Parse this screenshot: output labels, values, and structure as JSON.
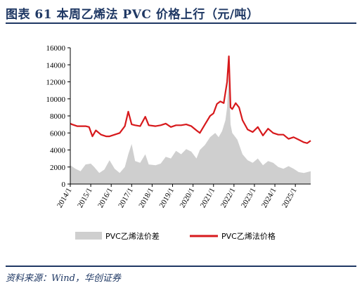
{
  "title": "图表 61    本周乙烯法 PVC 价格上行（元/吨）",
  "source": "资料来源：Wind，华创证券",
  "colors": {
    "price": "#d7191c",
    "spread": "#cfcfcf",
    "accent": "#1f3864"
  },
  "chart_data": {
    "type": "line",
    "ylim": [
      0,
      16000
    ],
    "yticks": [
      "0",
      "2000",
      "4000",
      "6000",
      "8000",
      "10000",
      "12000",
      "14000",
      "16000"
    ],
    "xlim": [
      "2014/1",
      "2025/10"
    ],
    "xticks": [
      "2014/1",
      "2015/1",
      "2016/1",
      "2017/1",
      "2018/1",
      "2019/1",
      "2020/1",
      "2021/1",
      "2022/1",
      "2023/1",
      "2024/1",
      "2025/1"
    ],
    "legend_position": "bottom",
    "series": [
      {
        "name": "PVC乙烯法价差",
        "style": "area",
        "color": "#cfcfcf",
        "points": [
          [
            "2014/1",
            2200
          ],
          [
            "2014/4",
            1800
          ],
          [
            "2014/7",
            1500
          ],
          [
            "2014/10",
            2300
          ],
          [
            "2015/1",
            2400
          ],
          [
            "2015/3",
            2000
          ],
          [
            "2015/6",
            1300
          ],
          [
            "2015/9",
            1700
          ],
          [
            "2015/12",
            2800
          ],
          [
            "2016/3",
            1800
          ],
          [
            "2016/6",
            1300
          ],
          [
            "2016/9",
            2000
          ],
          [
            "2016/11",
            3500
          ],
          [
            "2017/1",
            4700
          ],
          [
            "2017/3",
            2700
          ],
          [
            "2017/6",
            2500
          ],
          [
            "2017/9",
            3500
          ],
          [
            "2017/11",
            2300
          ],
          [
            "2018/3",
            2200
          ],
          [
            "2018/6",
            2400
          ],
          [
            "2018/9",
            3200
          ],
          [
            "2018/12",
            3000
          ],
          [
            "2019/3",
            3900
          ],
          [
            "2019/6",
            3500
          ],
          [
            "2019/9",
            4100
          ],
          [
            "2019/12",
            3800
          ],
          [
            "2020/3",
            3000
          ],
          [
            "2020/5",
            4000
          ],
          [
            "2020/8",
            4600
          ],
          [
            "2020/11",
            5500
          ],
          [
            "2021/2",
            6000
          ],
          [
            "2021/4",
            5500
          ],
          [
            "2021/6",
            6200
          ],
          [
            "2021/8",
            7500
          ],
          [
            "2021/9",
            9000
          ],
          [
            "2021/10",
            13000
          ],
          [
            "2021/11",
            7000
          ],
          [
            "2021/12",
            6000
          ],
          [
            "2022/3",
            5200
          ],
          [
            "2022/6",
            3500
          ],
          [
            "2022/9",
            2800
          ],
          [
            "2022/12",
            2500
          ],
          [
            "2023/3",
            3000
          ],
          [
            "2023/6",
            2200
          ],
          [
            "2023/9",
            2700
          ],
          [
            "2023/12",
            2500
          ],
          [
            "2024/3",
            2000
          ],
          [
            "2024/6",
            1800
          ],
          [
            "2024/9",
            2100
          ],
          [
            "2024/12",
            1800
          ],
          [
            "2025/3",
            1400
          ],
          [
            "2025/6",
            1300
          ],
          [
            "2025/10",
            1500
          ]
        ]
      },
      {
        "name": "PVC乙烯法价格",
        "style": "line",
        "color": "#d7191c",
        "points": [
          [
            "2014/1",
            7100
          ],
          [
            "2014/2",
            7000
          ],
          [
            "2014/5",
            6800
          ],
          [
            "2014/10",
            6800
          ],
          [
            "2014/12",
            6700
          ],
          [
            "2015/2",
            5600
          ],
          [
            "2015/4",
            6300
          ],
          [
            "2015/7",
            5800
          ],
          [
            "2015/10",
            5600
          ],
          [
            "2015/12",
            5600
          ],
          [
            "2016/3",
            5800
          ],
          [
            "2016/6",
            6000
          ],
          [
            "2016/9",
            6800
          ],
          [
            "2016/11",
            8500
          ],
          [
            "2017/1",
            7000
          ],
          [
            "2017/3",
            6900
          ],
          [
            "2017/6",
            6800
          ],
          [
            "2017/9",
            7900
          ],
          [
            "2017/11",
            6900
          ],
          [
            "2018/3",
            6800
          ],
          [
            "2018/6",
            6900
          ],
          [
            "2018/9",
            7100
          ],
          [
            "2018/12",
            6700
          ],
          [
            "2019/3",
            6900
          ],
          [
            "2019/6",
            6900
          ],
          [
            "2019/9",
            7000
          ],
          [
            "2019/12",
            6800
          ],
          [
            "2020/3",
            6300
          ],
          [
            "2020/5",
            6000
          ],
          [
            "2020/8",
            7000
          ],
          [
            "2020/11",
            8000
          ],
          [
            "2021/1",
            8300
          ],
          [
            "2021/3",
            9400
          ],
          [
            "2021/5",
            9700
          ],
          [
            "2021/7",
            9500
          ],
          [
            "2021/9",
            12000
          ],
          [
            "2021/10",
            15000
          ],
          [
            "2021/11",
            9000
          ],
          [
            "2021/12",
            8800
          ],
          [
            "2022/2",
            9500
          ],
          [
            "2022/4",
            9000
          ],
          [
            "2022/6",
            7500
          ],
          [
            "2022/9",
            6400
          ],
          [
            "2022/12",
            6100
          ],
          [
            "2023/3",
            6700
          ],
          [
            "2023/6",
            5700
          ],
          [
            "2023/9",
            6500
          ],
          [
            "2023/12",
            6000
          ],
          [
            "2024/3",
            5800
          ],
          [
            "2024/6",
            5800
          ],
          [
            "2024/9",
            5300
          ],
          [
            "2024/12",
            5500
          ],
          [
            "2025/3",
            5200
          ],
          [
            "2025/6",
            4900
          ],
          [
            "2025/8",
            4800
          ],
          [
            "2025/10",
            5100
          ]
        ]
      }
    ]
  }
}
